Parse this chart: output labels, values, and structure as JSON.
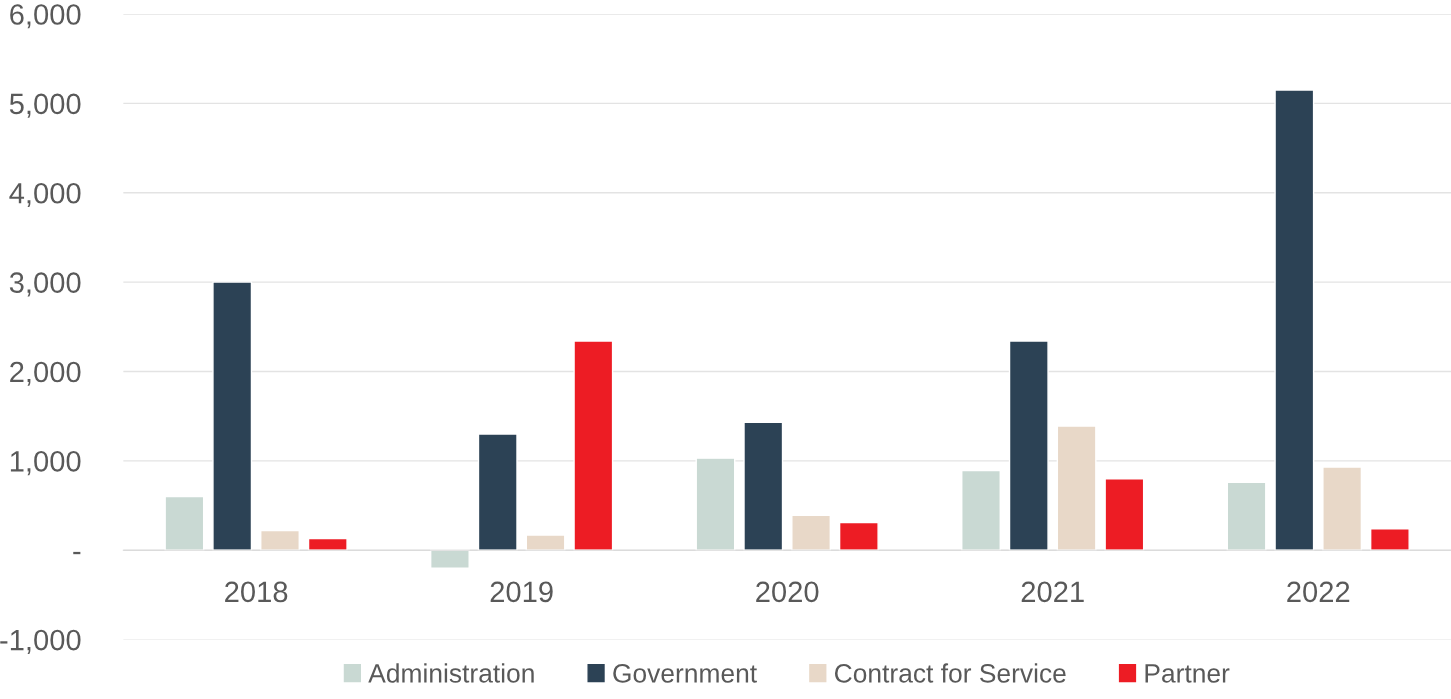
{
  "chart_data": {
    "type": "bar",
    "categories": [
      "2018",
      "2019",
      "2020",
      "2021",
      "2022"
    ],
    "series": [
      {
        "name": "Administration",
        "color": "#c9d9d3",
        "values": [
          600,
          -200,
          1030,
          890,
          760
        ]
      },
      {
        "name": "Government",
        "color": "#2c4255",
        "values": [
          3000,
          1300,
          1430,
          2340,
          5150
        ]
      },
      {
        "name": "Contract for Service",
        "color": "#e8d8c8",
        "values": [
          220,
          170,
          390,
          1390,
          930
        ]
      },
      {
        "name": "Partner",
        "color": "#ed1c24",
        "values": [
          130,
          2340,
          310,
          800,
          240
        ]
      }
    ],
    "ylim": [
      -1000,
      6000
    ],
    "yticks": [
      {
        "value": -1000,
        "label": "-1,000"
      },
      {
        "value": 0,
        "label": "-"
      },
      {
        "value": 1000,
        "label": "1,000"
      },
      {
        "value": 2000,
        "label": "2,000"
      },
      {
        "value": 3000,
        "label": "3,000"
      },
      {
        "value": 4000,
        "label": "4,000"
      },
      {
        "value": 5000,
        "label": "5,000"
      },
      {
        "value": 6000,
        "label": "6,000"
      }
    ],
    "grid": "y",
    "legend": "bottom"
  }
}
